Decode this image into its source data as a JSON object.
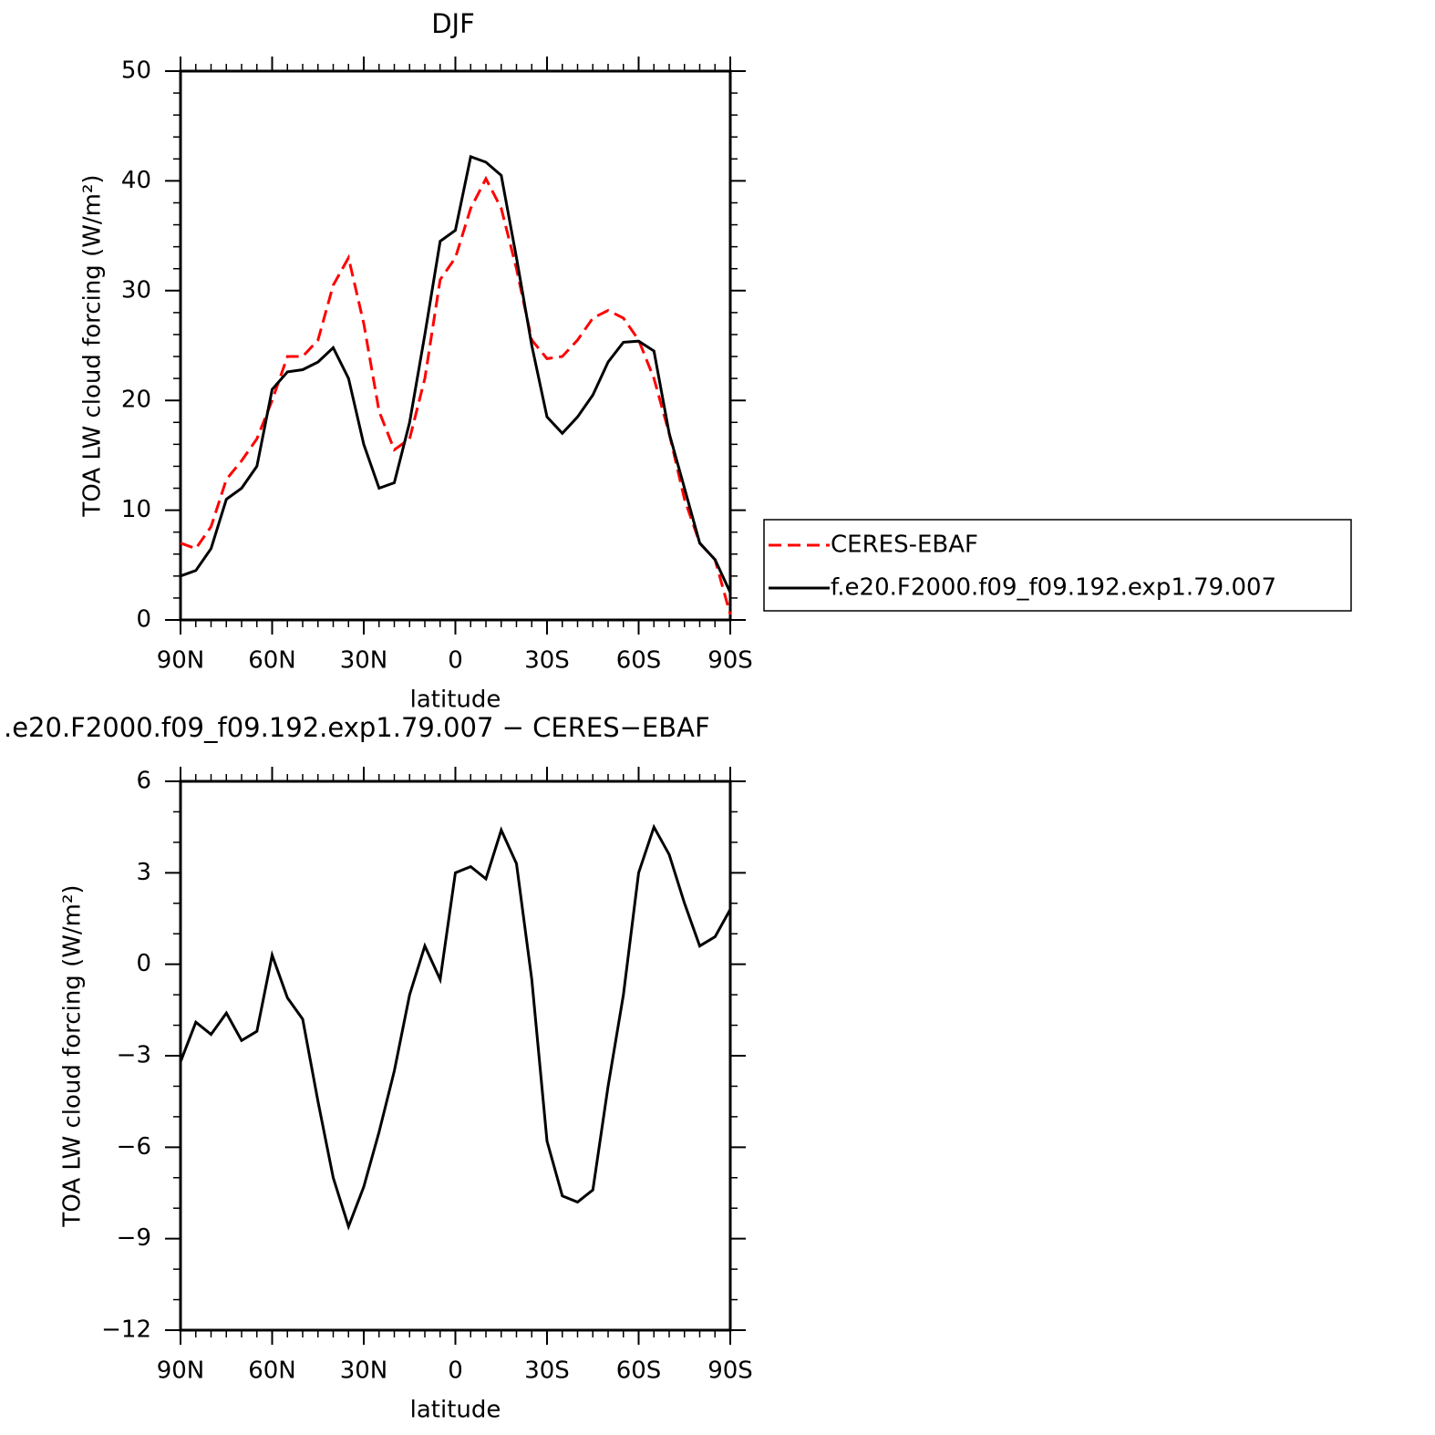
{
  "chart_data": [
    {
      "type": "line",
      "title": "DJF",
      "x_label": "latitude",
      "y_label": "TOA LW cloud forcing (W/m²)",
      "x": [
        90,
        85,
        80,
        75,
        70,
        65,
        60,
        55,
        50,
        45,
        40,
        35,
        30,
        25,
        20,
        15,
        10,
        5,
        0,
        -5,
        -10,
        -15,
        -20,
        -25,
        -30,
        -35,
        -40,
        -45,
        -50,
        -55,
        -60,
        -65,
        -70,
        -75,
        -80,
        -85,
        -90
      ],
      "xlim": [
        90,
        -90
      ],
      "xticks": [
        {
          "value": 90,
          "label": "90N"
        },
        {
          "value": 60,
          "label": "60N"
        },
        {
          "value": 30,
          "label": "30N"
        },
        0,
        {
          "value": -30,
          "label": "30S"
        },
        {
          "value": -60,
          "label": "60S"
        },
        {
          "value": -90,
          "label": "90S"
        }
      ],
      "ylim": [
        0,
        50
      ],
      "yticks": [
        0,
        10,
        20,
        30,
        40,
        50
      ],
      "legend": "right",
      "series": [
        {
          "name": "CERES-EBAF",
          "color": "#ff0000",
          "line_style": "dashed",
          "values": [
            7.0,
            6.5,
            8.5,
            12.8,
            14.5,
            16.5,
            20,
            24,
            24,
            25.5,
            30.5,
            33,
            27,
            19,
            15.5,
            16.5,
            22,
            31,
            33,
            37.5,
            40.2,
            37.5,
            32,
            25.5,
            23.8,
            24,
            25.5,
            27.5,
            28.2,
            27.5,
            25.5,
            22,
            17,
            11,
            7,
            5.5,
            0.5
          ]
        },
        {
          "name": "f.e20.F2000.f09_f09.192.exp1.79.007",
          "color": "#000000",
          "line_style": "solid",
          "values": [
            4.0,
            4.5,
            6.5,
            11,
            12,
            14,
            21,
            22.6,
            22.8,
            23.5,
            24.8,
            22,
            16,
            12,
            12.5,
            18,
            26,
            34.5,
            35.5,
            42.2,
            41.7,
            40.5,
            33,
            25,
            18.5,
            17,
            18.5,
            20.5,
            23.5,
            25.3,
            25.4,
            24.5,
            17,
            12,
            7,
            5.5,
            2.5
          ]
        }
      ]
    },
    {
      "type": "line",
      "title": ".e20.F2000.f09_f09.192.exp1.79.007 − CERES−EBAF",
      "x_label": "latitude",
      "y_label": "TOA LW cloud forcing (W/m²)",
      "x": [
        90,
        85,
        80,
        75,
        70,
        65,
        60,
        55,
        50,
        45,
        40,
        35,
        30,
        25,
        20,
        15,
        10,
        5,
        0,
        -5,
        -10,
        -15,
        -20,
        -25,
        -30,
        -35,
        -40,
        -45,
        -50,
        -55,
        -60,
        -65,
        -70,
        -75,
        -80,
        -85,
        -90
      ],
      "xlim": [
        90,
        -90
      ],
      "xticks": [
        {
          "value": 90,
          "label": "90N"
        },
        {
          "value": 60,
          "label": "60N"
        },
        {
          "value": 30,
          "label": "30N"
        },
        0,
        {
          "value": -30,
          "label": "30S"
        },
        {
          "value": -60,
          "label": "60S"
        },
        {
          "value": -90,
          "label": "90S"
        }
      ],
      "ylim": [
        -12,
        6
      ],
      "yticks": [
        {
          "value": -12,
          "label": "−12"
        },
        {
          "value": -9,
          "label": "−9"
        },
        {
          "value": -6,
          "label": "−6"
        },
        {
          "value": -3,
          "label": "−3"
        },
        0,
        3,
        6
      ],
      "series": [
        {
          "color": "#000000",
          "line_style": "solid",
          "values": [
            -3.2,
            -1.9,
            -2.3,
            -1.6,
            -2.5,
            -2.2,
            0.3,
            -1.1,
            -1.8,
            -4.5,
            -7,
            -8.6,
            -7.3,
            -5.5,
            -3.5,
            -1,
            0.6,
            -0.5,
            3.0,
            3.2,
            2.8,
            4.4,
            3.3,
            -0.5,
            -5.8,
            -7.6,
            -7.8,
            -7.4,
            -4,
            -1,
            3.0,
            4.5,
            3.6,
            2.0,
            0.6,
            0.9,
            1.8
          ]
        }
      ]
    }
  ]
}
